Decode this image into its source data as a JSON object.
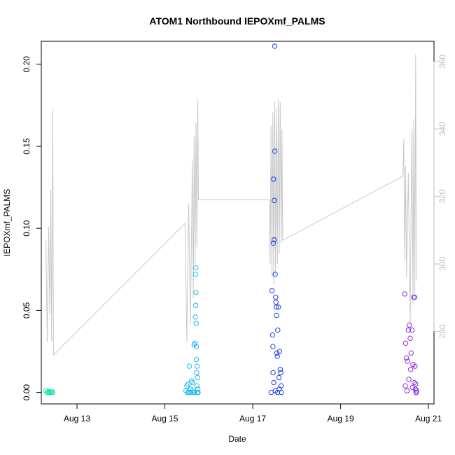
{
  "chart_data": {
    "type": "scatter",
    "title": "ATOM1 Northbound IEPOXmf_PALMS",
    "xlabel": "Date",
    "ylabel": "IEPOXmf_PALMS",
    "x_ticks": [
      {
        "date": "2016-08-13",
        "label": "Aug 13"
      },
      {
        "date": "2016-08-15",
        "label": "Aug 15"
      },
      {
        "date": "2016-08-17",
        "label": "Aug 17"
      },
      {
        "date": "2016-08-19",
        "label": "Aug 19"
      },
      {
        "date": "2016-08-21",
        "label": "Aug 21"
      }
    ],
    "x_range": [
      "2016-08-12 04:30",
      "2016-08-21 03:00"
    ],
    "y_ticks": [
      "0.00",
      "0.05",
      "0.10",
      "0.15",
      "0.20"
    ],
    "ylim": [
      -0.007,
      0.214
    ],
    "y2_ticks": [
      "280",
      "300",
      "320",
      "340",
      "360"
    ],
    "y2lim": [
      258.5,
      366
    ],
    "grid": false,
    "colors": {
      "line": "#c8c8c8",
      "right_axis": "#bdbdbd",
      "flight_1": "#19e6b0",
      "flight_2": "#22b8ee",
      "flight_3": "#1e3ee8",
      "flight_4": "#8a2be2"
    },
    "series": [
      {
        "name": "",
        "kind": "points",
        "color": "#19e6b0",
        "points": [
          [
            "2016-08-12 07:00",
            0.001
          ],
          [
            "2016-08-12 07:45",
            0.0
          ],
          [
            "2016-08-12 08:30",
            0.0005
          ],
          [
            "2016-08-12 09:10",
            0.0
          ],
          [
            "2016-08-12 09:40",
            0.0
          ],
          [
            "2016-08-12 10:10",
            0.0008
          ],
          [
            "2016-08-12 10:45",
            0.0
          ],
          [
            "2016-08-12 08:00",
            0.0
          ],
          [
            "2016-08-12 09:00",
            0.0002
          ],
          [
            "2016-08-12 10:30",
            0.0
          ]
        ]
      },
      {
        "name": "",
        "kind": "points",
        "color": "#22b8ee",
        "points": [
          [
            "2016-08-15 11:30",
            0.001
          ],
          [
            "2016-08-15 12:00",
            0.004
          ],
          [
            "2016-08-15 12:40",
            0.005
          ],
          [
            "2016-08-15 13:20",
            0.016
          ],
          [
            "2016-08-15 14:00",
            0.002
          ],
          [
            "2016-08-15 14:30",
            0.007
          ],
          [
            "2016-08-15 15:00",
            0.006
          ],
          [
            "2016-08-15 15:30",
            0.0
          ],
          [
            "2016-08-15 16:00",
            0.029
          ],
          [
            "2016-08-15 16:30",
            0.03
          ],
          [
            "2016-08-15 16:40",
            0.046
          ],
          [
            "2016-08-15 16:50",
            0.053
          ],
          [
            "2016-08-15 17:00",
            0.061
          ],
          [
            "2016-08-15 16:45",
            0.072
          ],
          [
            "2016-08-15 16:55",
            0.076
          ],
          [
            "2016-08-15 17:05",
            0.042
          ],
          [
            "2016-08-15 17:10",
            0.02
          ],
          [
            "2016-08-15 17:15",
            0.028
          ],
          [
            "2016-08-15 17:20",
            0.012
          ],
          [
            "2016-08-15 17:30",
            0.004
          ],
          [
            "2016-08-15 17:40",
            0.0
          ],
          [
            "2016-08-15 18:00",
            0.002
          ],
          [
            "2016-08-15 12:20",
            0.0
          ],
          [
            "2016-08-15 13:00",
            0.0
          ],
          [
            "2016-08-15 14:10",
            0.0
          ],
          [
            "2016-08-15 15:10",
            0.001
          ],
          [
            "2016-08-15 16:10",
            0.0
          ],
          [
            "2016-08-15 17:35",
            0.016
          ],
          [
            "2016-08-15 17:50",
            0.009
          ],
          [
            "2016-08-15 18:10",
            0.0
          ]
        ]
      },
      {
        "name": "",
        "kind": "points",
        "color": "#1e3ee8",
        "points": [
          [
            "2016-08-17 10:00",
            0.0
          ],
          [
            "2016-08-17 10:30",
            0.062
          ],
          [
            "2016-08-17 10:50",
            0.035
          ],
          [
            "2016-08-17 11:00",
            0.028
          ],
          [
            "2016-08-17 11:15",
            0.091
          ],
          [
            "2016-08-17 11:20",
            0.13
          ],
          [
            "2016-08-17 11:40",
            0.093
          ],
          [
            "2016-08-17 11:45",
            0.117
          ],
          [
            "2016-08-17 12:00",
            0.211
          ],
          [
            "2016-08-17 12:05",
            0.147
          ],
          [
            "2016-08-17 12:15",
            0.072
          ],
          [
            "2016-08-17 12:30",
            0.058
          ],
          [
            "2016-08-17 12:40",
            0.055
          ],
          [
            "2016-08-17 12:50",
            0.052
          ],
          [
            "2016-08-17 13:00",
            0.047
          ],
          [
            "2016-08-17 13:10",
            0.024
          ],
          [
            "2016-08-17 13:25",
            0.022
          ],
          [
            "2016-08-17 13:40",
            0.038
          ],
          [
            "2016-08-17 14:00",
            0.052
          ],
          [
            "2016-08-17 14:20",
            0.009
          ],
          [
            "2016-08-17 14:40",
            0.025
          ],
          [
            "2016-08-17 15:00",
            0.014
          ],
          [
            "2016-08-17 15:20",
            0.012
          ],
          [
            "2016-08-17 15:30",
            0.004
          ],
          [
            "2016-08-17 11:05",
            0.012
          ],
          [
            "2016-08-17 11:30",
            0.006
          ],
          [
            "2016-08-17 12:20",
            0.001
          ],
          [
            "2016-08-17 13:30",
            0.0
          ],
          [
            "2016-08-17 14:30",
            0.002
          ],
          [
            "2016-08-17 15:40",
            0.0
          ]
        ]
      },
      {
        "name": "",
        "kind": "points",
        "color": "#8a2be2",
        "points": [
          [
            "2016-08-20 11:00",
            0.06
          ],
          [
            "2016-08-20 11:30",
            0.03
          ],
          [
            "2016-08-20 12:00",
            0.021
          ],
          [
            "2016-08-20 12:30",
            0.019
          ],
          [
            "2016-08-20 13:00",
            0.038
          ],
          [
            "2016-08-20 13:30",
            0.041
          ],
          [
            "2016-08-20 14:00",
            0.033
          ],
          [
            "2016-08-20 14:30",
            0.024
          ],
          [
            "2016-08-20 15:00",
            0.038
          ],
          [
            "2016-08-20 15:30",
            0.017
          ],
          [
            "2016-08-20 16:00",
            0.058
          ],
          [
            "2016-08-20 16:20",
            0.058
          ],
          [
            "2016-08-20 16:40",
            0.016
          ],
          [
            "2016-08-20 17:00",
            0.005
          ],
          [
            "2016-08-20 17:20",
            0.0
          ],
          [
            "2016-08-20 11:20",
            0.004
          ],
          [
            "2016-08-20 12:15",
            0.001
          ],
          [
            "2016-08-20 13:15",
            0.008
          ],
          [
            "2016-08-20 14:15",
            0.014
          ],
          [
            "2016-08-20 15:15",
            0.003
          ],
          [
            "2016-08-20 16:10",
            0.006
          ],
          [
            "2016-08-20 16:50",
            0.002
          ],
          [
            "2016-08-20 17:10",
            0.0
          ],
          [
            "2016-08-20 17:30",
            0.001
          ]
        ]
      },
      {
        "name": "",
        "kind": "line",
        "axis": "right",
        "color": "#c8c8c8",
        "points": [
          [
            "2016-08-12 07:00",
            307
          ],
          [
            "2016-08-12 07:45",
            277
          ],
          [
            "2016-08-12 08:30",
            311
          ],
          [
            "2016-08-12 09:10",
            285
          ],
          [
            "2016-08-12 09:40",
            322
          ],
          [
            "2016-08-12 10:10",
            277
          ],
          [
            "2016-08-12 10:45",
            346
          ],
          [
            "2016-08-12 11:10",
            273
          ],
          [
            "2016-08-15 11:00",
            312
          ],
          [
            "2016-08-15 12:00",
            277
          ],
          [
            "2016-08-15 13:00",
            318
          ],
          [
            "2016-08-15 14:00",
            282
          ],
          [
            "2016-08-15 15:00",
            331
          ],
          [
            "2016-08-15 15:30",
            290
          ],
          [
            "2016-08-15 16:00",
            338
          ],
          [
            "2016-08-15 16:30",
            300
          ],
          [
            "2016-08-15 17:00",
            342
          ],
          [
            "2016-08-15 17:30",
            305
          ],
          [
            "2016-08-15 18:00",
            349
          ],
          [
            "2016-08-15 18:20",
            319
          ],
          [
            "2016-08-17 09:00",
            319
          ],
          [
            "2016-08-17 09:30",
            300
          ],
          [
            "2016-08-17 10:00",
            341
          ],
          [
            "2016-08-17 10:30",
            296
          ],
          [
            "2016-08-17 11:00",
            345
          ],
          [
            "2016-08-17 11:30",
            294
          ],
          [
            "2016-08-17 12:00",
            348
          ],
          [
            "2016-08-17 12:30",
            297
          ],
          [
            "2016-08-17 13:00",
            346
          ],
          [
            "2016-08-17 13:30",
            300
          ],
          [
            "2016-08-17 14:00",
            349
          ],
          [
            "2016-08-17 14:30",
            303
          ],
          [
            "2016-08-17 15:00",
            348
          ],
          [
            "2016-08-17 15:30",
            306
          ],
          [
            "2016-08-17 16:00",
            340
          ],
          [
            "2016-08-17 16:20",
            307
          ],
          [
            "2016-08-20 10:00",
            326
          ],
          [
            "2016-08-20 10:30",
            337
          ],
          [
            "2016-08-20 11:00",
            301
          ],
          [
            "2016-08-20 11:30",
            329
          ],
          [
            "2016-08-20 12:00",
            296
          ],
          [
            "2016-08-20 13:00",
            327
          ],
          [
            "2016-08-20 14:00",
            282
          ],
          [
            "2016-08-20 14:30",
            315
          ],
          [
            "2016-08-20 15:00",
            340
          ],
          [
            "2016-08-20 15:30",
            288
          ],
          [
            "2016-08-20 16:00",
            343
          ],
          [
            "2016-08-20 16:30",
            290
          ],
          [
            "2016-08-20 17:00",
            362
          ],
          [
            "2016-08-20 17:20",
            295
          ]
        ]
      }
    ]
  }
}
